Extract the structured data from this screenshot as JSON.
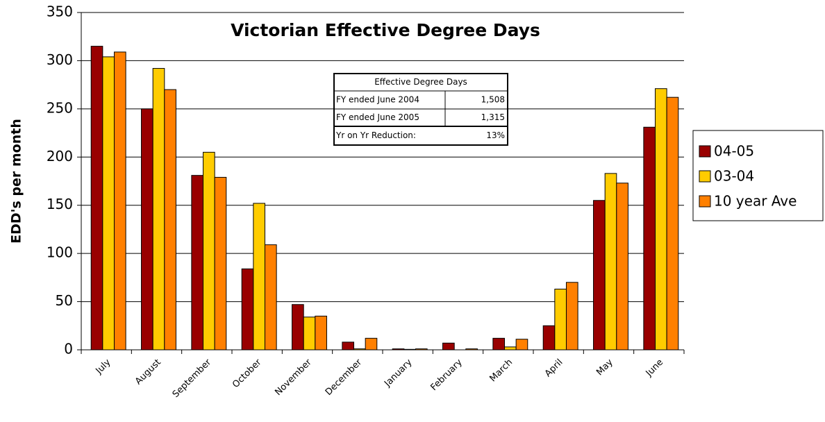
{
  "chart_data": {
    "type": "bar",
    "title": "Victorian Effective Degree Days",
    "y_label": "EDD's per month",
    "categories": [
      "July",
      "August",
      "September",
      "October",
      "November",
      "December",
      "January",
      "February",
      "March",
      "April",
      "May",
      "June"
    ],
    "series": [
      {
        "name": "04-05",
        "color": "#990000",
        "values": [
          315,
          250,
          181,
          84,
          47,
          8,
          1,
          7,
          12,
          25,
          155,
          231
        ]
      },
      {
        "name": "03-04",
        "color": "#ffcc00",
        "values": [
          304,
          292,
          205,
          152,
          34,
          1,
          0.5,
          0,
          3,
          63,
          183,
          271
        ]
      },
      {
        "name": "10 year Ave",
        "color": "#ff8000",
        "values": [
          309,
          270,
          179,
          109,
          35,
          12,
          1,
          1,
          11,
          70,
          173,
          262
        ]
      }
    ],
    "ylim": [
      0,
      350
    ],
    "yticks": [
      0,
      50,
      100,
      150,
      200,
      250,
      300,
      350
    ],
    "grid": true,
    "legend": "right",
    "table": {
      "title": "Effective Degree Days",
      "rows": [
        [
          "FY ended June 2004",
          "1,508"
        ],
        [
          "FY ended June 2005",
          "1,315"
        ],
        [
          "Yr on Yr Reduction:",
          "13%"
        ]
      ]
    }
  }
}
